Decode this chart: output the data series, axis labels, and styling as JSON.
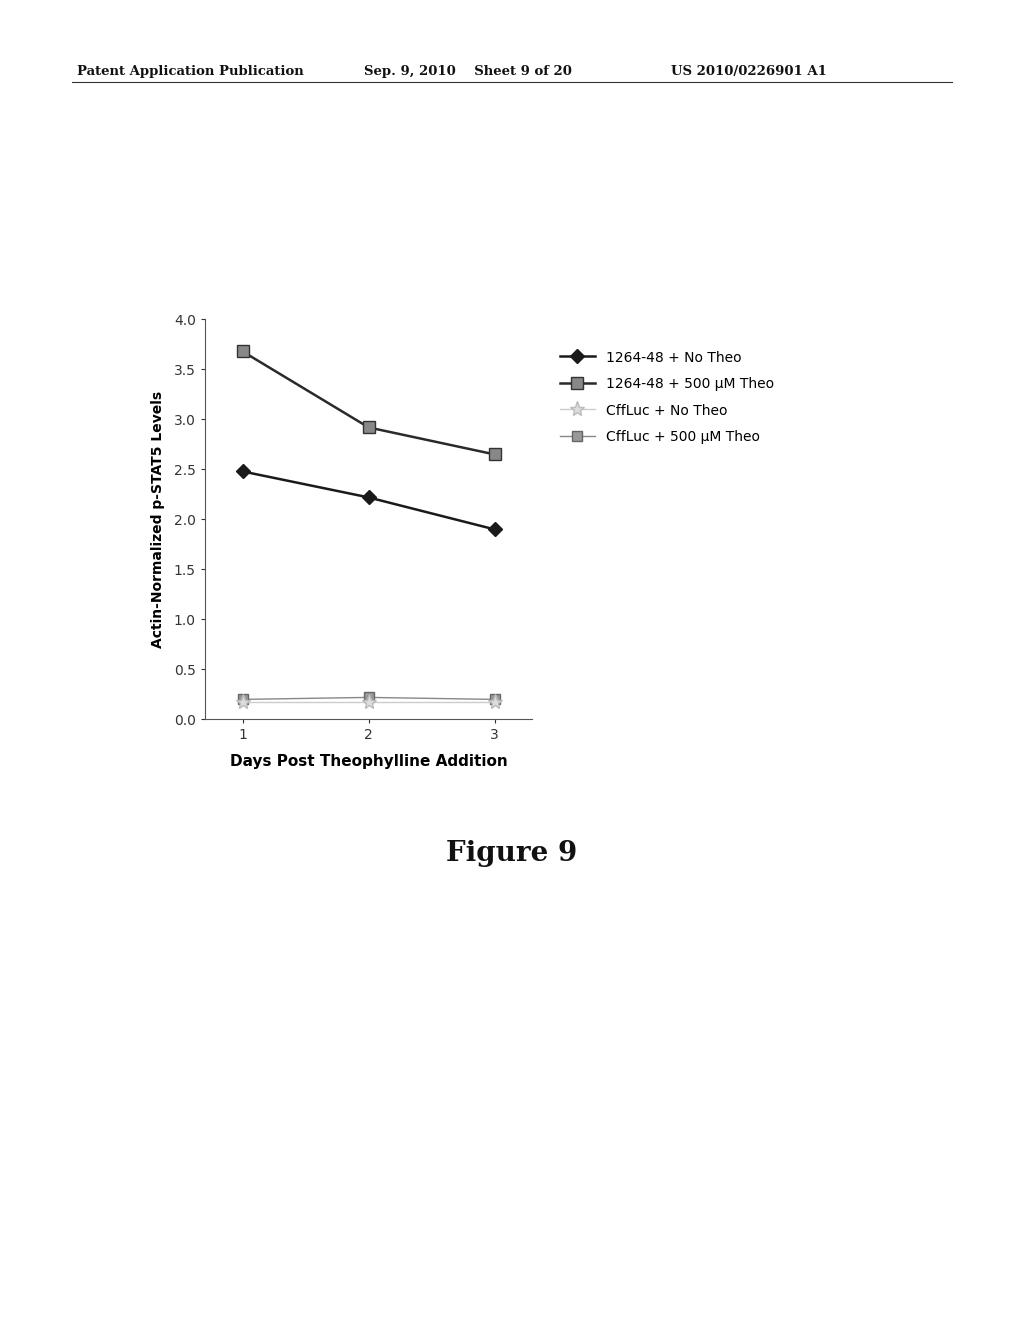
{
  "series": [
    {
      "label": "1264-48 + No Theo",
      "x": [
        1,
        2,
        3
      ],
      "y": [
        2.48,
        2.22,
        1.9
      ],
      "color": "#1a1a1a",
      "marker": "D",
      "marker_size": 7,
      "linewidth": 1.8,
      "markerfacecolor": "#1a1a1a",
      "markeredgecolor": "#1a1a1a"
    },
    {
      "label": "1264-48 + 500 μM Theo",
      "x": [
        1,
        2,
        3
      ],
      "y": [
        3.68,
        2.92,
        2.65
      ],
      "color": "#2a2a2a",
      "marker": "s",
      "marker_size": 9,
      "linewidth": 1.8,
      "markerfacecolor": "#888888",
      "markeredgecolor": "#333333"
    },
    {
      "label": "CffLuc + No Theo",
      "x": [
        1,
        2,
        3
      ],
      "y": [
        0.17,
        0.17,
        0.17
      ],
      "color": "#cccccc",
      "marker": "*",
      "marker_size": 11,
      "linewidth": 1.0,
      "markerfacecolor": "#dddddd",
      "markeredgecolor": "#bbbbbb"
    },
    {
      "label": "CffLuc + 500 μM Theo",
      "x": [
        1,
        2,
        3
      ],
      "y": [
        0.2,
        0.22,
        0.2
      ],
      "color": "#888888",
      "marker": "s",
      "marker_size": 7,
      "linewidth": 1.0,
      "markerfacecolor": "#999999",
      "markeredgecolor": "#666666"
    }
  ],
  "xlabel": "Days Post Theophylline Addition",
  "ylabel": "Actin-Normalized p-STAT5 Levels",
  "ylim": [
    0.0,
    4.0
  ],
  "yticks": [
    0.0,
    0.5,
    1.0,
    1.5,
    2.0,
    2.5,
    3.0,
    3.5,
    4.0
  ],
  "xlim": [
    0.7,
    3.3
  ],
  "xticks": [
    1,
    2,
    3
  ],
  "figure_caption": "Figure 9",
  "header_left": "Patent Application Publication",
  "header_mid": "Sep. 9, 2010    Sheet 9 of 20",
  "header_right": "US 2010/0226901 A1",
  "background_color": "#ffffff"
}
